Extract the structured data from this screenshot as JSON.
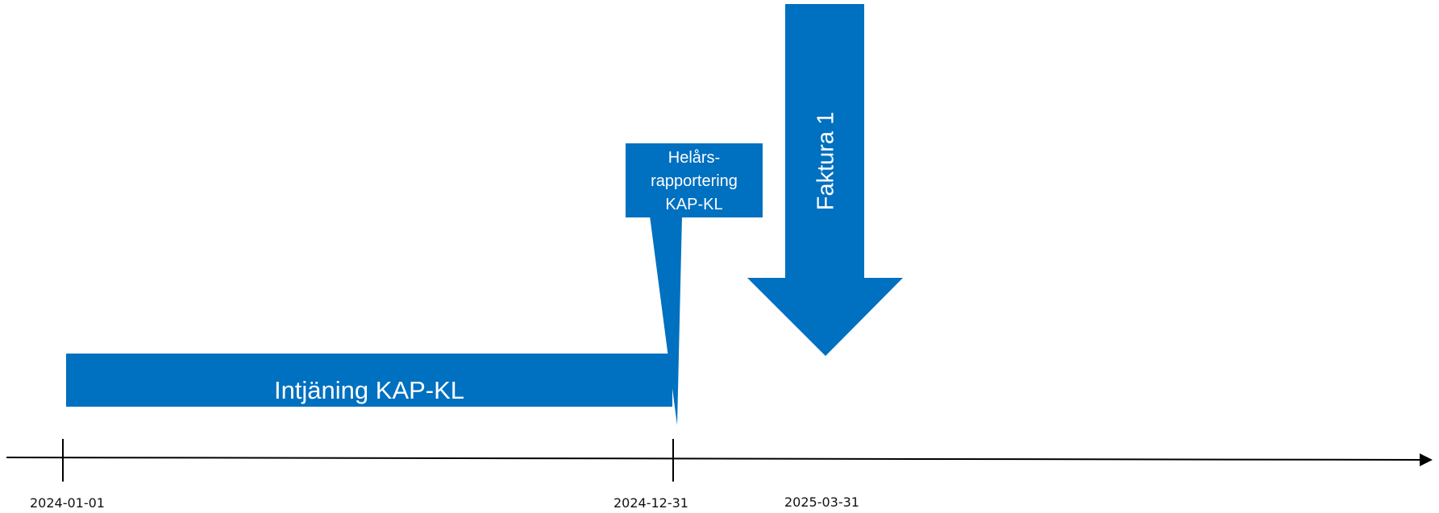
{
  "colors": {
    "accent": "#0070C0",
    "axis": "#000000",
    "text_on_accent": "#ffffff"
  },
  "timeline": {
    "dates": {
      "start": "2024-01-01",
      "year_end": "2024-12-31",
      "invoice": "2025-03-31"
    }
  },
  "intjaning_bar": {
    "label": "Intjäning KAP-KL"
  },
  "callout": {
    "line1": "Helårs-",
    "line2": "rapportering",
    "line3": "KAP-KL"
  },
  "invoice_arrow": {
    "label": "Faktura 1"
  }
}
